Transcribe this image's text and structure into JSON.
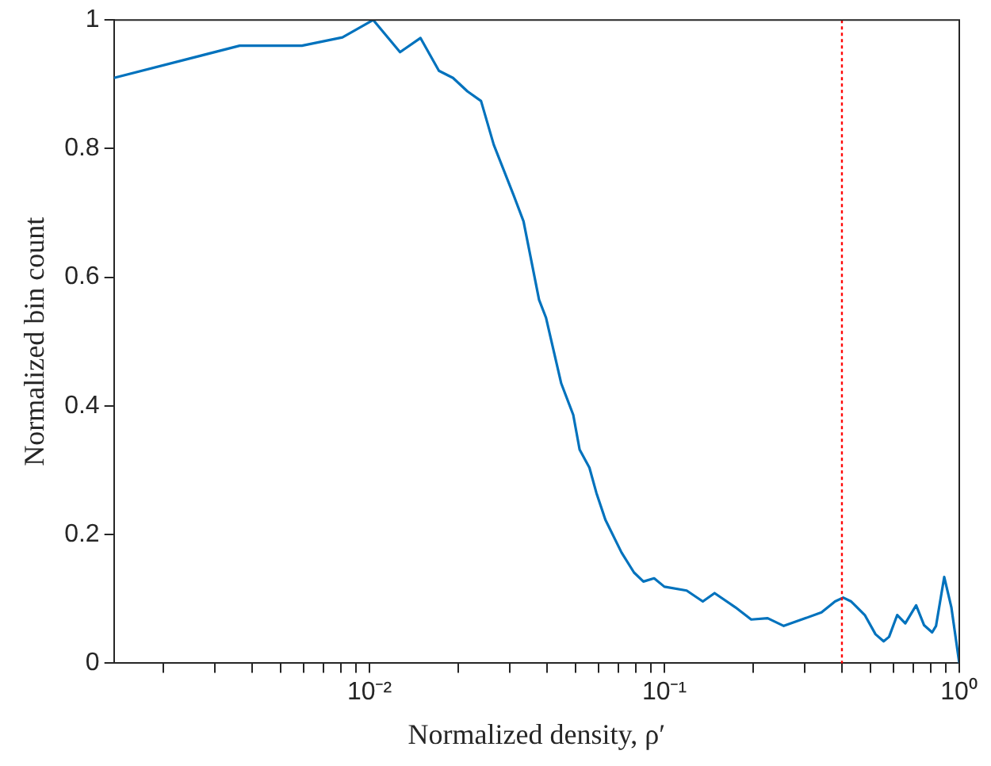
{
  "chart_data": {
    "type": "line",
    "xlabel": "Normalized density, ρ′",
    "ylabel": "Normalized bin count",
    "log": "x",
    "grid": false,
    "legend": false,
    "marker": "none",
    "line_style": "solid",
    "xlim": [
      0.00136,
      1
    ],
    "ylim": [
      0,
      1
    ],
    "xticks": [
      {
        "value": 0.002,
        "label": null
      },
      {
        "value": 0.003,
        "label": null
      },
      {
        "value": 0.004,
        "label": null
      },
      {
        "value": 0.005,
        "label": null
      },
      {
        "value": 0.006,
        "label": null
      },
      {
        "value": 0.007,
        "label": null
      },
      {
        "value": 0.008,
        "label": null
      },
      {
        "value": 0.009,
        "label": null
      },
      {
        "value": 0.01,
        "label": "10⁻²"
      },
      {
        "value": 0.02,
        "label": null
      },
      {
        "value": 0.03,
        "label": null
      },
      {
        "value": 0.04,
        "label": null
      },
      {
        "value": 0.05,
        "label": null
      },
      {
        "value": 0.06,
        "label": null
      },
      {
        "value": 0.07,
        "label": null
      },
      {
        "value": 0.08,
        "label": null
      },
      {
        "value": 0.09,
        "label": null
      },
      {
        "value": 0.1,
        "label": "10⁻¹"
      },
      {
        "value": 0.2,
        "label": null
      },
      {
        "value": 0.3,
        "label": null
      },
      {
        "value": 0.4,
        "label": null
      },
      {
        "value": 0.5,
        "label": null
      },
      {
        "value": 0.6,
        "label": null
      },
      {
        "value": 0.7,
        "label": null
      },
      {
        "value": 0.8,
        "label": null
      },
      {
        "value": 0.9,
        "label": null
      },
      {
        "value": 1,
        "label": "10⁰"
      }
    ],
    "yticks": [
      0,
      0.2,
      0.4,
      0.6,
      0.8,
      1
    ],
    "x": [
      0.00136,
      0.00363,
      0.0059,
      0.0081,
      0.0103,
      0.0127,
      0.0149,
      0.0172,
      0.0192,
      0.0215,
      0.0239,
      0.0264,
      0.0308,
      0.0333,
      0.0376,
      0.0397,
      0.0447,
      0.0491,
      0.0516,
      0.0557,
      0.0588,
      0.0631,
      0.0716,
      0.0789,
      0.0849,
      0.0923,
      0.1,
      0.119,
      0.135,
      0.148,
      0.174,
      0.197,
      0.224,
      0.254,
      0.301,
      0.341,
      0.379,
      0.404,
      0.43,
      0.478,
      0.52,
      0.554,
      0.578,
      0.616,
      0.656,
      0.714,
      0.76,
      0.809,
      0.834,
      0.889,
      0.94,
      1
    ],
    "series": [
      {
        "color": "#0072bd",
        "values": [
          0.91,
          0.96,
          0.96,
          0.973,
          1,
          0.95,
          0.972,
          0.921,
          0.91,
          0.889,
          0.874,
          0.806,
          0.728,
          0.687,
          0.565,
          0.537,
          0.435,
          0.386,
          0.332,
          0.304,
          0.265,
          0.223,
          0.172,
          0.141,
          0.127,
          0.132,
          0.119,
          0.113,
          0.096,
          0.109,
          0.087,
          0.068,
          0.07,
          0.058,
          0.07,
          0.079,
          0.096,
          0.102,
          0.096,
          0.075,
          0.045,
          0.034,
          0.041,
          0.075,
          0.062,
          0.09,
          0.059,
          0.048,
          0.058,
          0.134,
          0.087,
          0
        ]
      }
    ],
    "ref_lines": [
      {
        "axis": "x",
        "value": 0.4,
        "color": "#ff0000",
        "line_style": "dotted"
      }
    ]
  }
}
